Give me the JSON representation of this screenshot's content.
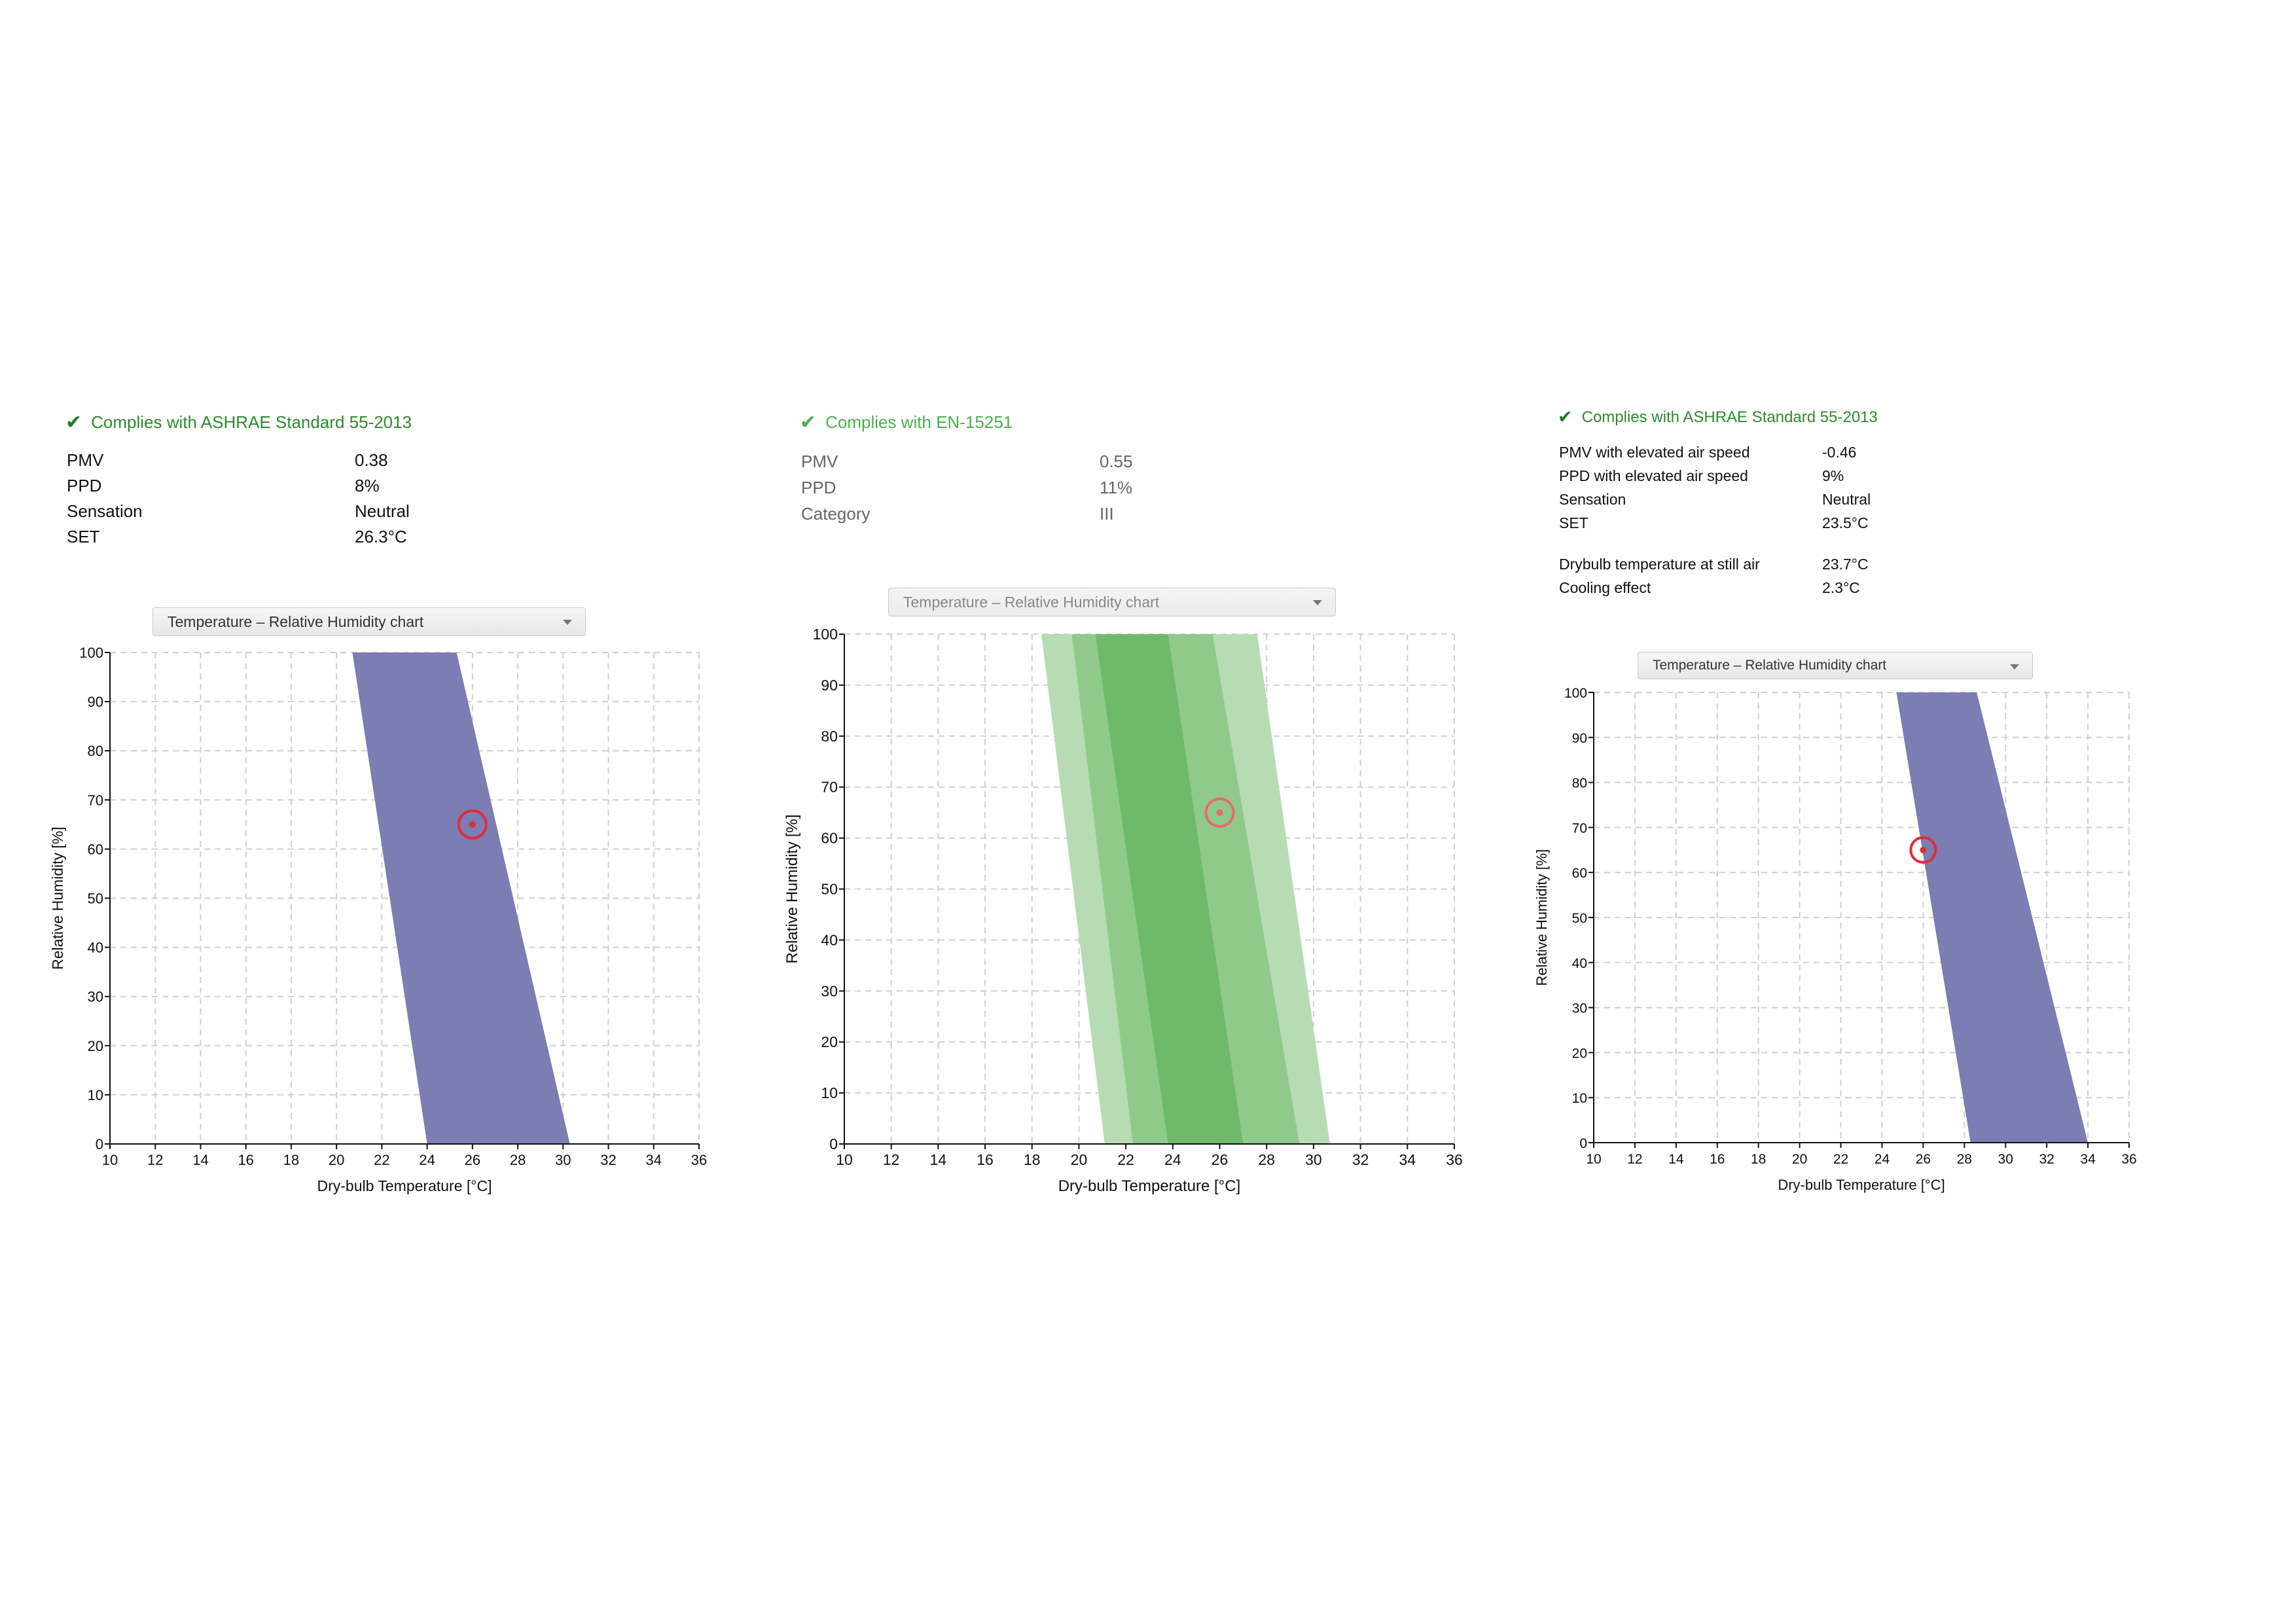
{
  "panels": [
    {
      "compliance": "Complies with ASHRAE Standard 55-2013",
      "metrics": [
        {
          "label": "PMV",
          "value": "0.38"
        },
        {
          "label": "PPD",
          "value": "8%"
        },
        {
          "label": "Sensation",
          "value": "Neutral"
        },
        {
          "label": "SET",
          "value": "26.3°C"
        }
      ],
      "chart_selector": "Temperature – Relative Humidity chart"
    },
    {
      "compliance": "Complies with EN-15251",
      "metrics": [
        {
          "label": "PMV",
          "value": "0.55"
        },
        {
          "label": "PPD",
          "value": "11%"
        },
        {
          "label": "Category",
          "value": "III"
        }
      ],
      "chart_selector": "Temperature – Relative Humidity chart"
    },
    {
      "compliance": "Complies with ASHRAE Standard 55-2013",
      "metrics": [
        {
          "label": "PMV with elevated air speed",
          "value": "-0.46"
        },
        {
          "label": "PPD with elevated air speed",
          "value": "9%"
        },
        {
          "label": "Sensation",
          "value": "Neutral"
        },
        {
          "label": "SET",
          "value": "23.5°C"
        },
        {
          "label": "Drybulb temperature at still air",
          "value": "23.7°C"
        },
        {
          "label": "Cooling effect",
          "value": "2.3°C"
        }
      ],
      "chart_selector": "Temperature – Relative Humidity chart"
    }
  ],
  "chart_data": [
    {
      "type": "area",
      "xlabel": "Dry-bulb Temperature [°C]",
      "ylabel": "Relative Humidity [%]",
      "xlim": [
        10,
        36
      ],
      "ylim": [
        0,
        100
      ],
      "xticks": [
        "10",
        "12",
        "14",
        "16",
        "18",
        "20",
        "22",
        "24",
        "26",
        "28",
        "30",
        "32",
        "34",
        "36"
      ],
      "yticks": [
        "0",
        "10",
        "20",
        "30",
        "40",
        "50",
        "60",
        "70",
        "80",
        "90",
        "100"
      ],
      "grid": true,
      "zone_color": "#7b7db3",
      "zones": [
        {
          "polygon": [
            [
              20.7,
              100
            ],
            [
              25.3,
              100
            ],
            [
              30.3,
              0
            ],
            [
              24.0,
              0
            ]
          ]
        }
      ],
      "point": {
        "x": 26,
        "y": 65,
        "color": "#e32a3c"
      }
    },
    {
      "type": "area",
      "xlabel": "Dry-bulb Temperature [°C]",
      "ylabel": "Relative Humidity [%]",
      "xlim": [
        10,
        36
      ],
      "ylim": [
        0,
        100
      ],
      "xticks": [
        "10",
        "12",
        "14",
        "16",
        "18",
        "20",
        "22",
        "24",
        "26",
        "28",
        "30",
        "32",
        "34",
        "36"
      ],
      "yticks": [
        "0",
        "10",
        "20",
        "30",
        "40",
        "50",
        "60",
        "70",
        "80",
        "90",
        "100"
      ],
      "grid": true,
      "zones": [
        {
          "color": "#b7dcb4",
          "polygon": [
            [
              18.4,
              100
            ],
            [
              27.6,
              100
            ],
            [
              30.7,
              0
            ],
            [
              21.1,
              0
            ]
          ]
        },
        {
          "color": "#8fca8b",
          "polygon": [
            [
              19.7,
              100
            ],
            [
              25.7,
              100
            ],
            [
              29.4,
              0
            ],
            [
              22.3,
              0
            ]
          ]
        },
        {
          "color": "#6fba6a",
          "polygon": [
            [
              20.7,
              100
            ],
            [
              23.8,
              100
            ],
            [
              27.0,
              0
            ],
            [
              23.8,
              0
            ]
          ]
        }
      ],
      "point": {
        "x": 26,
        "y": 65,
        "color": "#e86a6a"
      }
    },
    {
      "type": "area",
      "xlabel": "Dry-bulb Temperature [°C]",
      "ylabel": "Relative Humidity [%]",
      "xlim": [
        10,
        36
      ],
      "ylim": [
        0,
        100
      ],
      "xticks": [
        "10",
        "12",
        "14",
        "16",
        "18",
        "20",
        "22",
        "24",
        "26",
        "28",
        "30",
        "32",
        "34",
        "36"
      ],
      "yticks": [
        "0",
        "10",
        "20",
        "30",
        "40",
        "50",
        "60",
        "70",
        "80",
        "90",
        "100"
      ],
      "grid": true,
      "zone_color": "#7b7db3",
      "zones": [
        {
          "polygon": [
            [
              24.7,
              100
            ],
            [
              28.6,
              100
            ],
            [
              34.0,
              0
            ],
            [
              28.3,
              0
            ]
          ]
        }
      ],
      "point": {
        "x": 26,
        "y": 65,
        "color": "#e32a3c"
      }
    }
  ]
}
